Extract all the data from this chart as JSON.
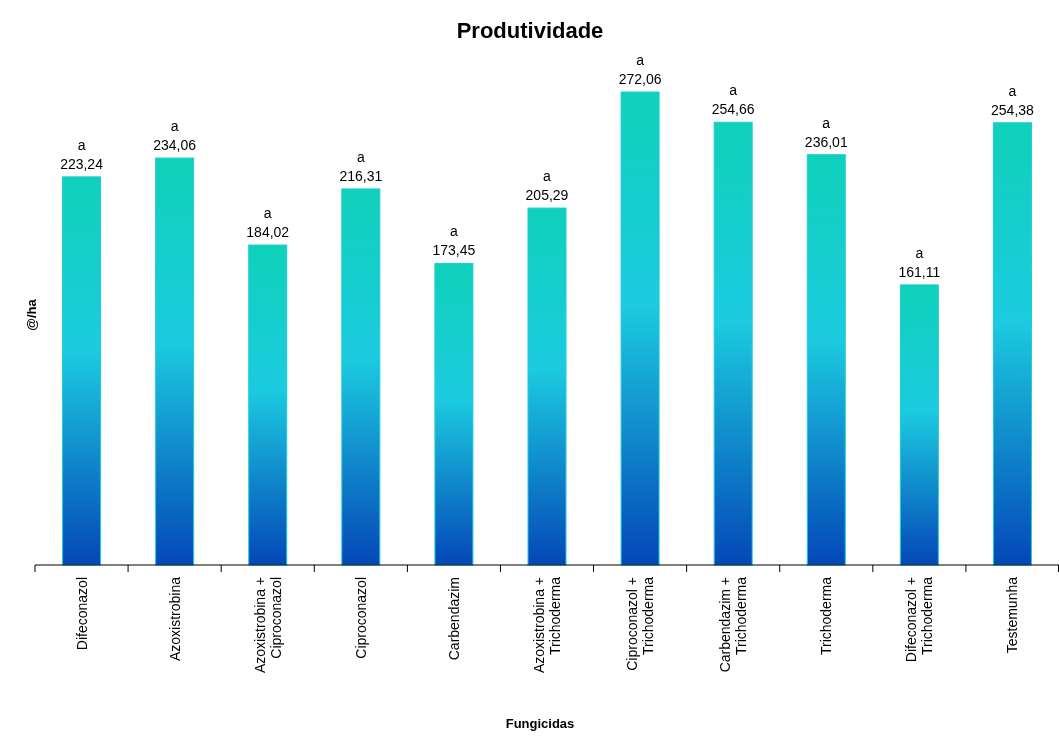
{
  "chart_data": {
    "type": "bar",
    "title": "Produtividade",
    "xlabel": "Fungicidas",
    "ylabel": "@/ha",
    "categories": [
      "Difeconazol",
      "Azoxistrobina",
      "Azoxistrobina +\nCiproconazol",
      "Ciproconazol",
      "Carbendazim",
      "Azoxistrobina +\nTrichoderma",
      "Ciproconazol +\nTrichoderma",
      "Carbendazim +\nTrichoderma",
      "Trichoderma",
      "Difeconazol +\nTrichoderma",
      "Testemunha"
    ],
    "series": [
      {
        "color": "#1ccbe0",
        "values": [
          223.24,
          234.06,
          184.02,
          216.31,
          173.45,
          205.29,
          272.06,
          254.66,
          236.01,
          161.11,
          254.38
        ],
        "value_labels": [
          "223,24",
          "234,06",
          "184,02",
          "216,31",
          "173,45",
          "205,29",
          "272,06",
          "254,66",
          "236,01",
          "161,11",
          "254,38"
        ]
      }
    ],
    "data_labels": false,
    "annotations": [
      {
        "text": "a",
        "x": "Difeconazol",
        "y": 223.24
      },
      {
        "text": "a",
        "x": "Azoxistrobina",
        "y": 234.06
      },
      {
        "text": "a",
        "x": "Azoxistrobina +\nCiproconazol",
        "y": 184.02
      },
      {
        "text": "a",
        "x": "Ciproconazol",
        "y": 216.31
      },
      {
        "text": "a",
        "x": "Carbendazim",
        "y": 173.45
      },
      {
        "text": "a",
        "x": "Azoxistrobina +\nTrichoderma",
        "y": 205.29
      },
      {
        "text": "a",
        "x": "Ciproconazol +\nTrichoderma",
        "y": 272.06
      },
      {
        "text": "a",
        "x": "Carbendazim +\nTrichoderma",
        "y": 254.66
      },
      {
        "text": "a",
        "x": "Trichoderma",
        "y": 236.01
      },
      {
        "text": "a",
        "x": "Difeconazol +\nTrichoderma",
        "y": 161.11
      },
      {
        "text": "a",
        "x": "Testemunha",
        "y": 254.38
      }
    ]
  }
}
